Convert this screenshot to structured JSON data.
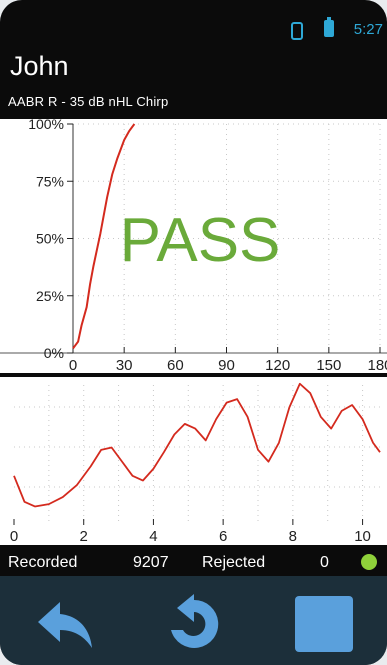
{
  "status": {
    "time": "5:27",
    "icons": [
      "vibrate-icon",
      "battery-icon"
    ],
    "accent": "#2ea8d6"
  },
  "header": {
    "name": "John",
    "test": "AABR R - 35 dB nHL Chirp"
  },
  "result": {
    "text": "PASS",
    "color": "#6aaa3a"
  },
  "charts": {
    "plot_bg": "#ffffff",
    "curve_color": "#d42a1e"
  },
  "chart_data": [
    {
      "type": "line",
      "ylim": [
        0,
        100
      ],
      "xlim": [
        0,
        180
      ],
      "yticks": [
        "0%",
        "25%",
        "50%",
        "75%",
        "100%"
      ],
      "yticks_values": [
        0,
        25,
        50,
        75,
        100
      ],
      "xticks": [
        "0",
        "30",
        "60",
        "90",
        "120",
        "150",
        "180"
      ],
      "xticks_values": [
        0,
        30,
        60,
        90,
        120,
        150,
        180
      ],
      "grid": true,
      "series": [
        {
          "x": [
            0,
            3,
            5,
            8,
            10,
            12,
            14,
            16,
            18,
            20,
            23,
            26,
            30,
            33,
            36
          ],
          "y": [
            2,
            5,
            12,
            20,
            30,
            38,
            45,
            52,
            60,
            68,
            78,
            85,
            93,
            97,
            100
          ]
        }
      ]
    },
    {
      "type": "line",
      "xlim": [
        0,
        10.5
      ],
      "xticks": [
        "0",
        "2",
        "4",
        "6",
        "8",
        "10"
      ],
      "xticks_values": [
        0,
        2,
        4,
        6,
        8,
        10
      ],
      "ylim": [
        0,
        100
      ],
      "grid": true,
      "series": [
        {
          "x": [
            0,
            0.3,
            0.6,
            1.0,
            1.4,
            1.8,
            2.2,
            2.5,
            2.8,
            3.1,
            3.4,
            3.7,
            4.0,
            4.3,
            4.6,
            4.9,
            5.2,
            5.5,
            5.8,
            6.1,
            6.4,
            6.7,
            7.0,
            7.3,
            7.6,
            7.9,
            8.2,
            8.5,
            8.8,
            9.1,
            9.4,
            9.7,
            10.0,
            10.3,
            10.5
          ],
          "y": [
            40,
            18,
            14,
            16,
            22,
            32,
            48,
            62,
            64,
            52,
            40,
            36,
            46,
            60,
            75,
            84,
            80,
            70,
            88,
            102,
            105,
            90,
            62,
            52,
            68,
            98,
            118,
            110,
            90,
            80,
            95,
            100,
            88,
            68,
            60
          ]
        }
      ]
    }
  ],
  "bottom": {
    "recorded_label": "Recorded",
    "recorded_value": "9207",
    "rejected_label": "Rejected",
    "rejected_value": "0",
    "indicator_color": "#8fd13a"
  },
  "nav": {
    "back": "back-arrow-icon",
    "redo": "redo-icon",
    "stop": "stop-icon"
  }
}
